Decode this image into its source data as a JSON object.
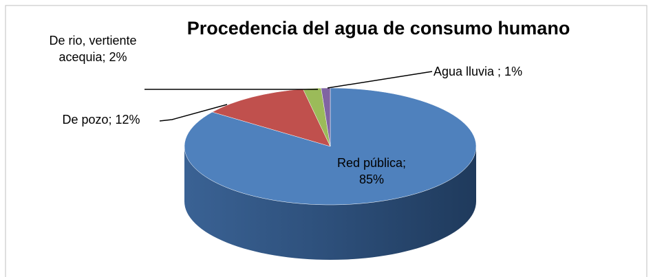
{
  "chart_data": {
    "type": "pie3d",
    "title": "Procedencia del agua de consumo humano",
    "values": [
      85,
      12,
      2,
      1
    ],
    "value_labels": [
      "Red pública; 85%",
      "De pozo; 12%",
      "De rio, vertiente acequia; 2%",
      "Agua lluvia ; 1%"
    ],
    "colors": [
      "#4f81bd",
      "#c0504d",
      "#9bbb59",
      "#8064a2"
    ]
  }
}
